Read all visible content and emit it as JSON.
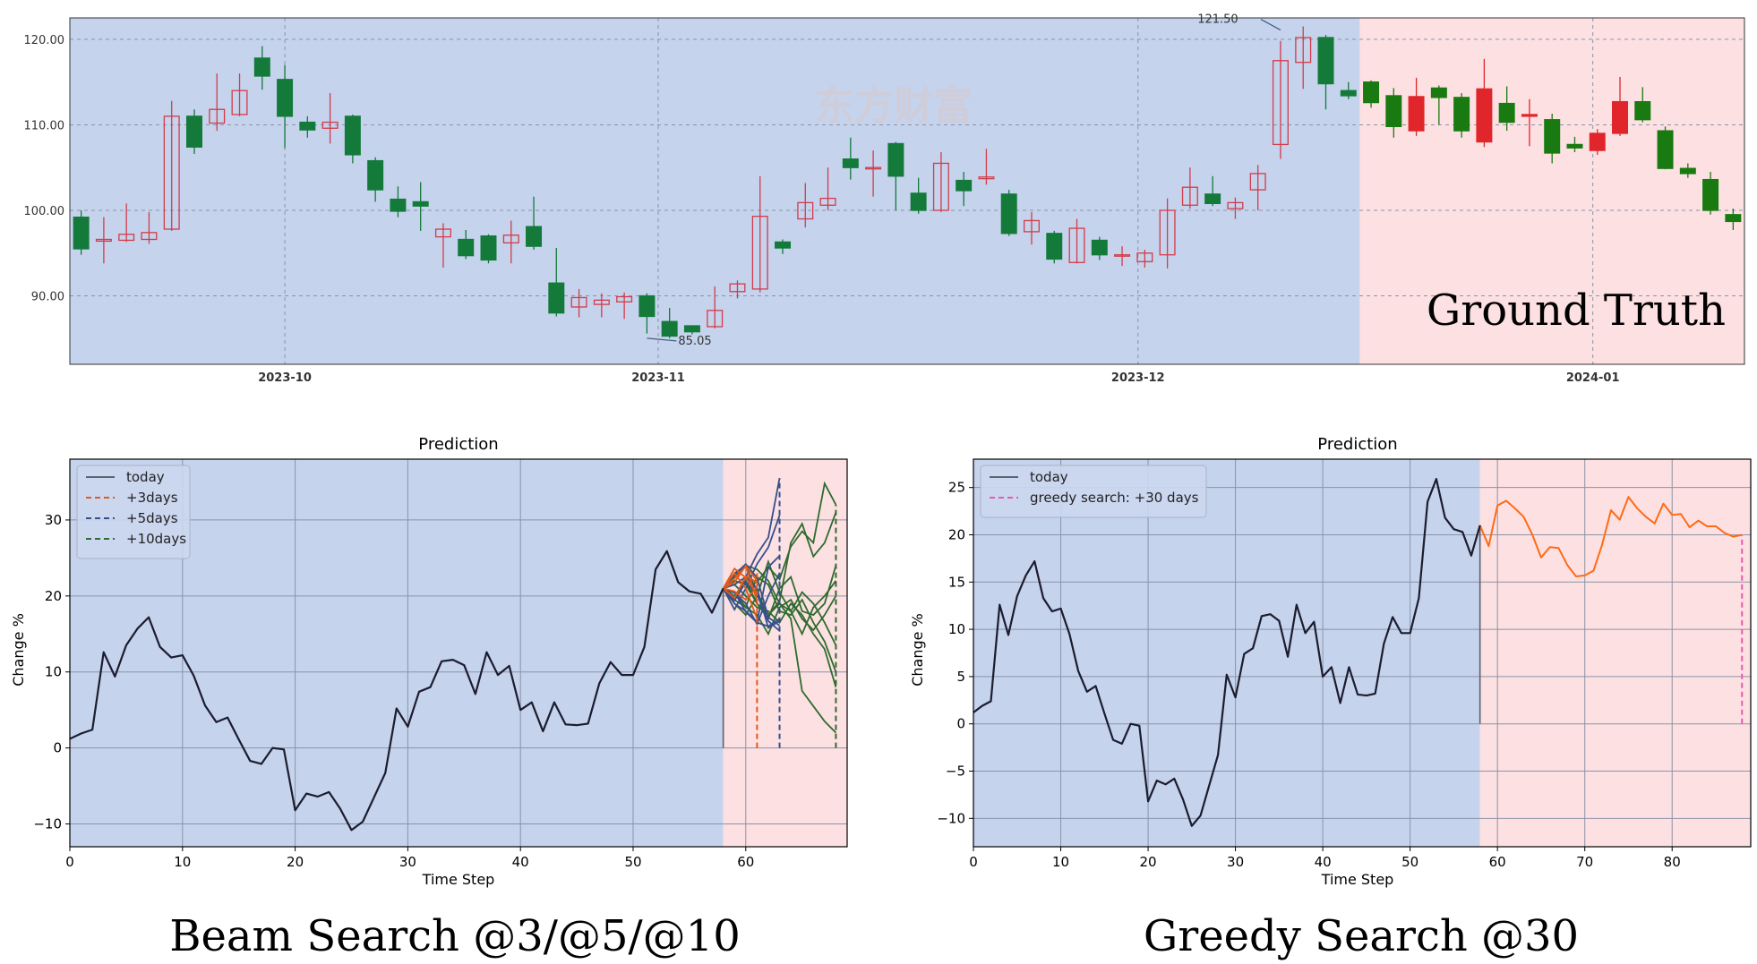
{
  "colors": {
    "history_bg": "#c5d3ed",
    "future_bg": "#fde0e2",
    "up_candle": "#d23c4a",
    "down_candle": "#137a3a",
    "future_down_candle": "#187a10",
    "future_up_candle": "#e0262b",
    "history_line": "#1c1c2e",
    "pred3": "#e05a1e",
    "pred5": "#35508c",
    "pred10": "#2e6b2e",
    "greedy": "#ff6a14",
    "greedy_marker": "#e75ab4"
  },
  "watermark": "东方财富",
  "chart_data": [
    {
      "type": "candlestick",
      "caption": "Ground Truth",
      "x_ticks": [
        "2023-10",
        "2023-11",
        "2023-12",
        "2024-01"
      ],
      "y_ticks": [
        "90.00",
        "100.00",
        "110.00",
        "120.00"
      ],
      "ylim": [
        82,
        122.5
      ],
      "annotations": [
        {
          "label": "121.50",
          "value": 121.5,
          "index": 53
        },
        {
          "label": "85.05",
          "value": 85.05,
          "index": 25
        }
      ],
      "history_count": 57,
      "candles": [
        {
          "o": 99.2,
          "c": 95.5,
          "h": 100.0,
          "l": 94.8
        },
        {
          "o": 96.4,
          "c": 96.6,
          "h": 99.2,
          "l": 93.8
        },
        {
          "o": 96.5,
          "c": 97.2,
          "h": 100.8,
          "l": 96.3
        },
        {
          "o": 96.6,
          "c": 97.4,
          "h": 99.8,
          "l": 96.1
        },
        {
          "o": 97.8,
          "c": 111.0,
          "h": 112.8,
          "l": 97.6
        },
        {
          "o": 111.0,
          "c": 107.4,
          "h": 111.8,
          "l": 106.6
        },
        {
          "o": 110.2,
          "c": 111.8,
          "h": 116.0,
          "l": 109.3
        },
        {
          "o": 111.2,
          "c": 114.0,
          "h": 116.0,
          "l": 111.0
        },
        {
          "o": 117.8,
          "c": 115.7,
          "h": 119.2,
          "l": 114.1
        },
        {
          "o": 115.3,
          "c": 111.0,
          "h": 117.0,
          "l": 107.3
        },
        {
          "o": 110.3,
          "c": 109.4,
          "h": 111.0,
          "l": 108.5
        },
        {
          "o": 109.6,
          "c": 110.3,
          "h": 113.7,
          "l": 107.8
        },
        {
          "o": 111.0,
          "c": 106.5,
          "h": 111.2,
          "l": 105.5
        },
        {
          "o": 105.8,
          "c": 102.4,
          "h": 106.2,
          "l": 101.0
        },
        {
          "o": 101.3,
          "c": 99.9,
          "h": 102.8,
          "l": 99.2
        },
        {
          "o": 101.0,
          "c": 100.5,
          "h": 103.3,
          "l": 97.6
        },
        {
          "o": 96.9,
          "c": 97.8,
          "h": 98.5,
          "l": 93.3
        },
        {
          "o": 96.6,
          "c": 94.7,
          "h": 97.7,
          "l": 94.3
        },
        {
          "o": 97.0,
          "c": 94.2,
          "h": 97.2,
          "l": 93.8
        },
        {
          "o": 96.2,
          "c": 97.1,
          "h": 98.8,
          "l": 93.8
        },
        {
          "o": 98.1,
          "c": 95.8,
          "h": 101.6,
          "l": 95.4
        },
        {
          "o": 91.5,
          "c": 88.0,
          "h": 95.6,
          "l": 87.6
        },
        {
          "o": 88.7,
          "c": 89.8,
          "h": 90.8,
          "l": 87.5
        },
        {
          "o": 89.0,
          "c": 89.5,
          "h": 90.3,
          "l": 87.5
        },
        {
          "o": 89.3,
          "c": 89.9,
          "h": 90.4,
          "l": 87.3
        },
        {
          "o": 90.0,
          "c": 87.6,
          "h": 90.3,
          "l": 85.6
        },
        {
          "o": 87.0,
          "c": 85.3,
          "h": 88.6,
          "l": 85.05
        },
        {
          "o": 86.5,
          "c": 85.8,
          "h": 86.5,
          "l": 85.5
        },
        {
          "o": 86.4,
          "c": 88.3,
          "h": 91.1,
          "l": 86.2
        },
        {
          "o": 90.5,
          "c": 91.4,
          "h": 91.8,
          "l": 89.7
        },
        {
          "o": 90.8,
          "c": 99.3,
          "h": 104.0,
          "l": 90.4
        },
        {
          "o": 96.3,
          "c": 95.6,
          "h": 96.6,
          "l": 94.9
        },
        {
          "o": 99.0,
          "c": 100.9,
          "h": 103.2,
          "l": 98.0
        },
        {
          "o": 100.6,
          "c": 101.4,
          "h": 105.0,
          "l": 100.0
        },
        {
          "o": 106.0,
          "c": 105.0,
          "h": 108.5,
          "l": 103.6
        },
        {
          "o": 104.9,
          "c": 105.0,
          "h": 107.0,
          "l": 101.6
        },
        {
          "o": 107.8,
          "c": 104.0,
          "h": 108.0,
          "l": 100.0
        },
        {
          "o": 102.0,
          "c": 100.0,
          "h": 103.8,
          "l": 99.6
        },
        {
          "o": 100.0,
          "c": 105.5,
          "h": 106.8,
          "l": 99.8
        },
        {
          "o": 103.5,
          "c": 102.3,
          "h": 104.5,
          "l": 100.5
        },
        {
          "o": 103.7,
          "c": 103.9,
          "h": 107.2,
          "l": 103.0
        },
        {
          "o": 101.9,
          "c": 97.3,
          "h": 102.4,
          "l": 97.0
        },
        {
          "o": 97.5,
          "c": 98.8,
          "h": 99.8,
          "l": 96.0
        },
        {
          "o": 97.3,
          "c": 94.3,
          "h": 97.6,
          "l": 93.8
        },
        {
          "o": 93.9,
          "c": 97.9,
          "h": 99.0,
          "l": 93.8
        },
        {
          "o": 96.5,
          "c": 94.8,
          "h": 96.9,
          "l": 94.2
        },
        {
          "o": 94.8,
          "c": 94.8,
          "h": 95.8,
          "l": 93.5
        },
        {
          "o": 94.0,
          "c": 95.0,
          "h": 95.4,
          "l": 93.3
        },
        {
          "o": 94.8,
          "c": 100.0,
          "h": 101.4,
          "l": 93.2
        },
        {
          "o": 100.6,
          "c": 102.7,
          "h": 105.0,
          "l": 100.2
        },
        {
          "o": 101.9,
          "c": 100.8,
          "h": 104.0,
          "l": 100.5
        },
        {
          "o": 100.2,
          "c": 100.9,
          "h": 101.5,
          "l": 99.0
        },
        {
          "o": 102.4,
          "c": 104.3,
          "h": 105.3,
          "l": 100.0
        },
        {
          "o": 107.7,
          "c": 117.5,
          "h": 119.8,
          "l": 106.0
        },
        {
          "o": 117.3,
          "c": 120.2,
          "h": 121.5,
          "l": 114.2
        },
        {
          "o": 120.2,
          "c": 114.8,
          "h": 120.5,
          "l": 111.8
        },
        {
          "o": 114.0,
          "c": 113.4,
          "h": 115.0,
          "l": 113.0
        },
        {
          "o": 115.0,
          "c": 112.6,
          "h": 115.2,
          "l": 112.0
        },
        {
          "o": 113.4,
          "c": 109.8,
          "h": 114.3,
          "l": 108.5
        },
        {
          "o": 109.3,
          "c": 113.3,
          "h": 115.5,
          "l": 108.7
        },
        {
          "o": 114.3,
          "c": 113.2,
          "h": 114.6,
          "l": 110.0
        },
        {
          "o": 113.2,
          "c": 109.3,
          "h": 113.7,
          "l": 108.5
        },
        {
          "o": 108.0,
          "c": 114.2,
          "h": 117.7,
          "l": 107.4
        },
        {
          "o": 112.5,
          "c": 110.3,
          "h": 114.5,
          "l": 109.3
        },
        {
          "o": 111.0,
          "c": 111.2,
          "h": 113.0,
          "l": 107.5
        },
        {
          "o": 110.6,
          "c": 106.7,
          "h": 111.3,
          "l": 105.5
        },
        {
          "o": 107.7,
          "c": 107.3,
          "h": 108.6,
          "l": 106.8
        },
        {
          "o": 107.0,
          "c": 109.0,
          "h": 109.5,
          "l": 106.5
        },
        {
          "o": 109.0,
          "c": 112.7,
          "h": 115.6,
          "l": 108.7
        },
        {
          "o": 112.7,
          "c": 110.6,
          "h": 114.4,
          "l": 110.3
        },
        {
          "o": 109.3,
          "c": 104.9,
          "h": 109.8,
          "l": 104.8
        },
        {
          "o": 104.9,
          "c": 104.3,
          "h": 105.5,
          "l": 103.8
        },
        {
          "o": 103.6,
          "c": 100.0,
          "h": 104.5,
          "l": 99.5
        },
        {
          "o": 99.5,
          "c": 98.7,
          "h": 100.2,
          "l": 97.7
        }
      ]
    },
    {
      "type": "line",
      "title": "Prediction",
      "caption": "Beam Search @3/@5/@10",
      "xlabel": "Time Step",
      "ylabel": "Change %",
      "xlim": [
        0,
        69
      ],
      "ylim": [
        -13,
        38
      ],
      "x_ticks": [
        0,
        10,
        20,
        30,
        40,
        50,
        60
      ],
      "y_ticks": [
        -10,
        0,
        10,
        20,
        30
      ],
      "today": 58,
      "legend": [
        "today",
        "+3days",
        "+5days",
        "+10days"
      ],
      "history": [
        1.2,
        1.9,
        2.4,
        12.6,
        9.4,
        13.5,
        15.7,
        17.2,
        13.3,
        11.9,
        12.2,
        9.5,
        5.6,
        3.4,
        4.0,
        1.1,
        -1.7,
        -2.1,
        0.0,
        -0.2,
        -8.2,
        -6.0,
        -6.4,
        -5.8,
        -8.0,
        -10.8,
        -9.7,
        -6.5,
        -3.3,
        5.2,
        2.8,
        7.4,
        8.0,
        11.4,
        11.6,
        10.9,
        7.1,
        12.6,
        9.6,
        10.8,
        5.0,
        6.0,
        2.2,
        6.0,
        3.1,
        3.0,
        3.2,
        8.5,
        11.3,
        9.6,
        9.6,
        13.3,
        23.5,
        25.9,
        21.8,
        20.6,
        20.3,
        17.8,
        21.0
      ],
      "pred3_end": 61,
      "pred5_end": 63,
      "pred10_end": 68,
      "pred3": [
        [
          21.0,
          19.7,
          22.6,
          21.8
        ],
        [
          21.0,
          23.6,
          22.4,
          20.2
        ],
        [
          21.0,
          22.3,
          23.9,
          19.4
        ],
        [
          21.0,
          20.6,
          19.5,
          21.2
        ],
        [
          21.0,
          21.8,
          24.0,
          22.0
        ],
        [
          21.0,
          23.0,
          21.0,
          17.0
        ]
      ],
      "pred5": [
        [
          21.0,
          19.7,
          22.5,
          25.5,
          27.7,
          35.5
        ],
        [
          21.0,
          18.2,
          21.0,
          24.2,
          26.4,
          30.6
        ],
        [
          21.0,
          20.5,
          17.9,
          16.5,
          16.0,
          17.0
        ],
        [
          21.0,
          19.4,
          21.8,
          20.2,
          16.7,
          15.4
        ],
        [
          21.0,
          22.8,
          24.2,
          22.4,
          17.2,
          16.1
        ],
        [
          21.0,
          20.4,
          19.0,
          16.3,
          20.0,
          23.0
        ],
        [
          21.0,
          19.0,
          18.0,
          16.6,
          23.8,
          25.3
        ],
        [
          21.0,
          21.5,
          22.5,
          21.0,
          15.8,
          16.7
        ]
      ],
      "pred10": [
        [
          21.0,
          19.7,
          22.6,
          21.8,
          23.8,
          22.2,
          26.5,
          28.5,
          27.0,
          34.8,
          32.0
        ],
        [
          21.0,
          22.0,
          21.5,
          19.0,
          17.5,
          19.3,
          27.0,
          29.5,
          25.2,
          27.0,
          31.0
        ],
        [
          21.0,
          23.0,
          24.0,
          23.5,
          22.0,
          19.0,
          18.0,
          15.0,
          18.5,
          20.0,
          22.0
        ],
        [
          21.0,
          20.5,
          18.5,
          22.5,
          21.5,
          18.0,
          17.5,
          19.5,
          16.5,
          14.0,
          10.0
        ],
        [
          21.0,
          19.0,
          17.5,
          20.0,
          24.5,
          20.5,
          18.0,
          20.5,
          19.0,
          16.5,
          13.5
        ],
        [
          21.0,
          21.5,
          20.0,
          18.5,
          18.0,
          16.5,
          19.0,
          17.5,
          15.0,
          13.0,
          8.0
        ],
        [
          21.0,
          22.5,
          24.0,
          20.5,
          17.5,
          19.0,
          17.0,
          7.5,
          5.5,
          3.5,
          2.0
        ],
        [
          21.0,
          20.0,
          22.0,
          19.0,
          17.0,
          21.0,
          22.5,
          18.0,
          17.5,
          19.0,
          24.0
        ],
        [
          21.0,
          19.5,
          18.5,
          17.5,
          15.0,
          18.5,
          19.5,
          17.0,
          15.5,
          17.5,
          20.0
        ]
      ]
    },
    {
      "type": "line",
      "title": "Prediction",
      "caption": "Greedy Search @30",
      "xlabel": "Time Step",
      "ylabel": "Change %",
      "xlim": [
        0,
        89
      ],
      "ylim": [
        -13,
        28
      ],
      "x_ticks": [
        0,
        10,
        20,
        30,
        40,
        50,
        60,
        70,
        80
      ],
      "y_ticks": [
        -10,
        -5,
        0,
        5,
        10,
        15,
        20,
        25
      ],
      "today": 58,
      "legend": [
        "today",
        "greedy search: +30 days"
      ],
      "history": [
        1.2,
        1.9,
        2.4,
        12.6,
        9.4,
        13.5,
        15.7,
        17.2,
        13.3,
        11.9,
        12.2,
        9.5,
        5.6,
        3.4,
        4.0,
        1.1,
        -1.7,
        -2.1,
        0.0,
        -0.2,
        -8.2,
        -6.0,
        -6.4,
        -5.8,
        -8.0,
        -10.8,
        -9.7,
        -6.5,
        -3.3,
        5.2,
        2.8,
        7.4,
        8.0,
        11.4,
        11.6,
        10.9,
        7.1,
        12.6,
        9.6,
        10.8,
        5.0,
        6.0,
        2.2,
        6.0,
        3.1,
        3.0,
        3.2,
        8.5,
        11.3,
        9.6,
        9.6,
        13.3,
        23.5,
        25.9,
        21.8,
        20.6,
        20.3,
        17.8,
        21.0
      ],
      "greedy": [
        21.0,
        18.8,
        23.1,
        23.6,
        22.8,
        21.9,
        20.0,
        17.6,
        18.7,
        18.6,
        16.8,
        15.6,
        15.7,
        16.2,
        19.0,
        22.6,
        21.6,
        24.0,
        22.8,
        21.9,
        21.2,
        23.3,
        22.1,
        22.2,
        20.8,
        21.5,
        20.9,
        20.9,
        20.2,
        19.8,
        20.0
      ],
      "greedy_end": 88
    }
  ]
}
